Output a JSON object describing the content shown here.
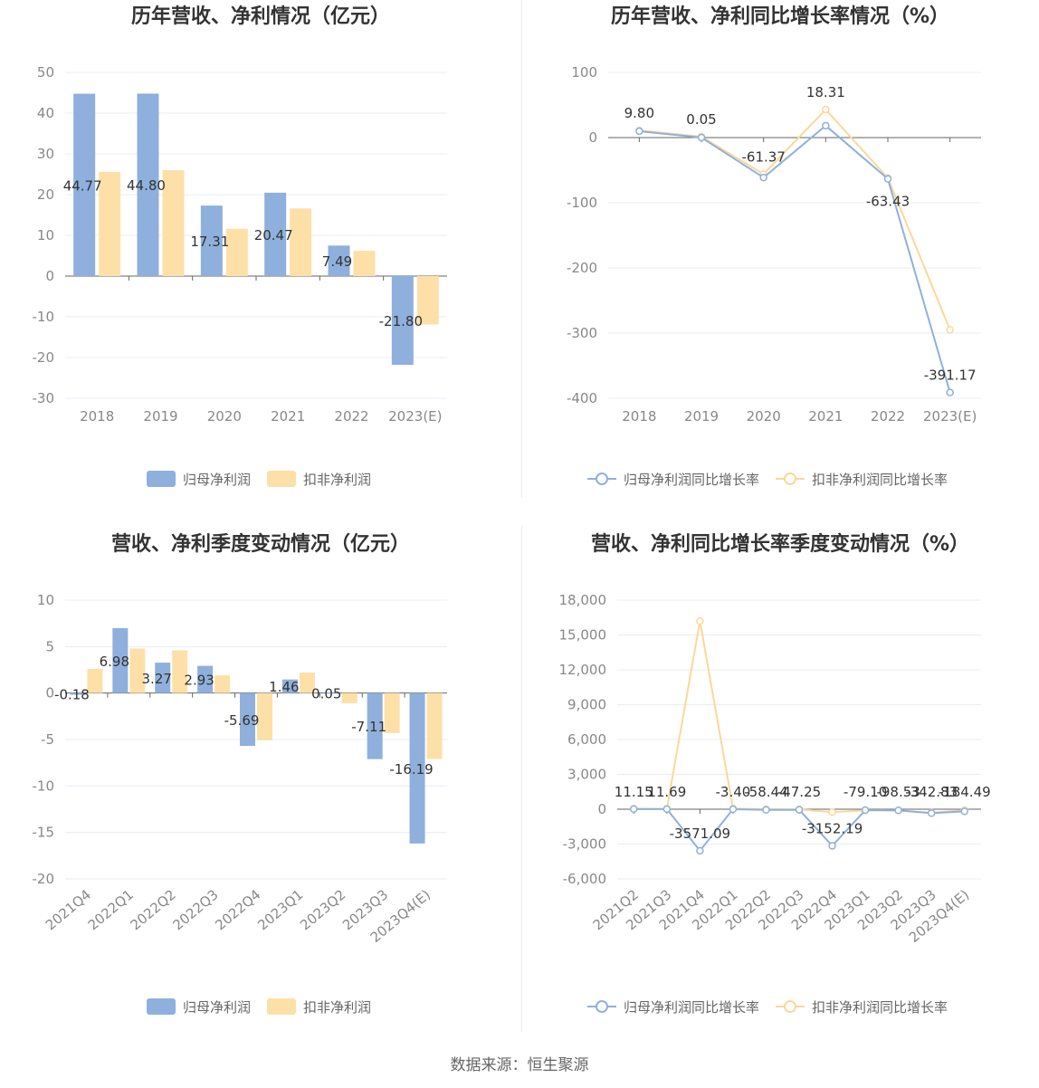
{
  "source_text": "数据来源：恒生聚源",
  "colors": {
    "blue": "#8fb0dc",
    "orange": "#fde0a8",
    "blue_line": "#8fb0dc",
    "orange_line": "#fbd899",
    "grid": "#e8ecf4",
    "axis": "#666666"
  },
  "chart_data": [
    {
      "type": "bar",
      "title": "历年营收、净利情况（亿元）",
      "categories": [
        "2018",
        "2019",
        "2020",
        "2021",
        "2022",
        "2023(E)"
      ],
      "ylim": [
        -30,
        50
      ],
      "yticks": [
        50,
        40,
        30,
        20,
        10,
        0,
        -10,
        -20,
        -30
      ],
      "ytick_labels": [
        "50",
        "40",
        "30",
        "20",
        "10",
        "0",
        "-10",
        "-20",
        "-30"
      ],
      "series": [
        {
          "name": "归母净利润",
          "values": [
            44.77,
            44.8,
            17.31,
            20.47,
            7.49,
            -21.8
          ],
          "labels": [
            "44.77",
            "44.80",
            "17.31",
            "20.47",
            "7.49",
            "-21.80"
          ]
        },
        {
          "name": "扣非净利润",
          "values": [
            25.6,
            26.0,
            11.6,
            16.6,
            6.2,
            -11.9
          ]
        }
      ],
      "legend": "bottom",
      "grid": true
    },
    {
      "type": "line",
      "title": "历年营收、净利同比增长率情况（%）",
      "categories": [
        "2018",
        "2019",
        "2020",
        "2021",
        "2022",
        "2023(E)"
      ],
      "ylim": [
        -400,
        100
      ],
      "yticks": [
        100,
        0,
        -100,
        -200,
        -300,
        -400
      ],
      "ytick_labels": [
        "100",
        "0",
        "-100",
        "-200",
        "-300",
        "-400"
      ],
      "series": [
        {
          "name": "归母净利润同比增长率",
          "values": [
            9.8,
            0.05,
            -61.37,
            18.31,
            -63.43,
            -391.17
          ],
          "labels": [
            "9.80",
            "0.05",
            "-61.37",
            "18.31",
            "-63.43",
            "-391.17"
          ]
        },
        {
          "name": "扣非净利润同比增长率",
          "values": [
            11.0,
            1.5,
            -56.0,
            43.0,
            -62.0,
            -295.0
          ]
        }
      ],
      "legend": "bottom",
      "grid": true
    },
    {
      "type": "bar",
      "title": "营收、净利季度变动情况（亿元）",
      "categories": [
        "2021Q4",
        "2022Q1",
        "2022Q2",
        "2022Q3",
        "2022Q4",
        "2023Q1",
        "2023Q2",
        "2023Q3",
        "2023Q4(E)"
      ],
      "ylim": [
        -20,
        10
      ],
      "yticks": [
        10,
        5,
        0,
        -5,
        -10,
        -15,
        -20
      ],
      "ytick_labels": [
        "10",
        "5",
        "0",
        "-5",
        "-10",
        "-15",
        "-20"
      ],
      "series": [
        {
          "name": "归母净利润",
          "values": [
            -0.18,
            6.98,
            3.27,
            2.93,
            -5.69,
            1.46,
            0.05,
            -7.11,
            -16.19
          ],
          "labels": [
            "-0.18",
            "6.98",
            "3.27",
            "2.93",
            "-5.69",
            "1.46",
            "0.05",
            "-7.11",
            "-16.19"
          ]
        },
        {
          "name": "扣非净利润",
          "values": [
            2.6,
            4.8,
            4.6,
            1.9,
            -5.1,
            2.2,
            -1.1,
            -4.3,
            -7.1
          ]
        }
      ],
      "legend": "bottom",
      "grid": true
    },
    {
      "type": "line",
      "title": "营收、净利同比增长率季度变动情况（%）",
      "categories": [
        "2021Q2",
        "2021Q3",
        "2021Q4",
        "2022Q1",
        "2022Q2",
        "2022Q3",
        "2022Q4",
        "2023Q1",
        "2023Q2",
        "2023Q3",
        "2023Q4(E)"
      ],
      "ylim": [
        -6000,
        18000
      ],
      "yticks": [
        18000,
        15000,
        12000,
        9000,
        6000,
        3000,
        0,
        -3000,
        -6000
      ],
      "ytick_labels": [
        "18,000",
        "15,000",
        "12,000",
        "9,000",
        "6,000",
        "3,000",
        "0",
        "-3,000",
        "-6,000"
      ],
      "series": [
        {
          "name": "归母净利润同比增长率",
          "values": [
            11.15,
            11.69,
            -3571.09,
            -3.4,
            -58.44,
            -47.25,
            -3152.19,
            -79.1,
            -98.53,
            -342.83,
            -184.49
          ],
          "labels": [
            "11.15",
            "11.69",
            "-3571.09",
            "-3.40",
            "-58.44",
            "-47.25",
            "-3152.19",
            "-79.10",
            "-98.53",
            "-342.83",
            "-184.49"
          ]
        },
        {
          "name": "扣非净利润同比增长率",
          "values": [
            60,
            30,
            16200,
            60,
            0,
            -10,
            -250,
            -100,
            -120,
            -300,
            -80
          ]
        }
      ],
      "legend": "bottom",
      "grid": true
    }
  ]
}
